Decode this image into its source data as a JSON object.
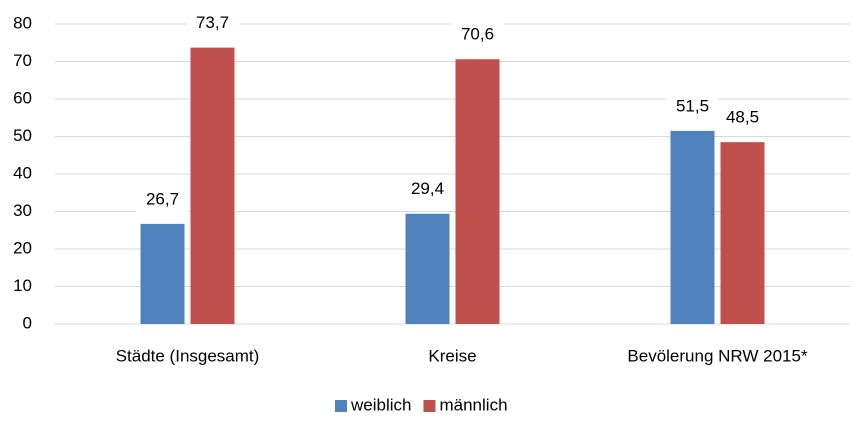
{
  "chart_data": {
    "type": "bar",
    "categories": [
      "Städte (Insgesamt)",
      "Kreise",
      "Bevölerung NRW 2015*"
    ],
    "series": [
      {
        "name": "weiblich",
        "color": "#4f81bd",
        "values": [
          26.7,
          29.4,
          51.5
        ],
        "value_labels": [
          "26,7",
          "29,4",
          "51,5"
        ]
      },
      {
        "name": "männlich",
        "color": "#c0504d",
        "values": [
          73.7,
          70.6,
          48.5
        ],
        "value_labels": [
          "73,7",
          "70,6",
          "48,5"
        ]
      }
    ],
    "ylim": [
      0,
      80
    ],
    "yticks": [
      0,
      10,
      20,
      30,
      40,
      50,
      60,
      70,
      80
    ],
    "grid": true,
    "legend": "bottom"
  }
}
